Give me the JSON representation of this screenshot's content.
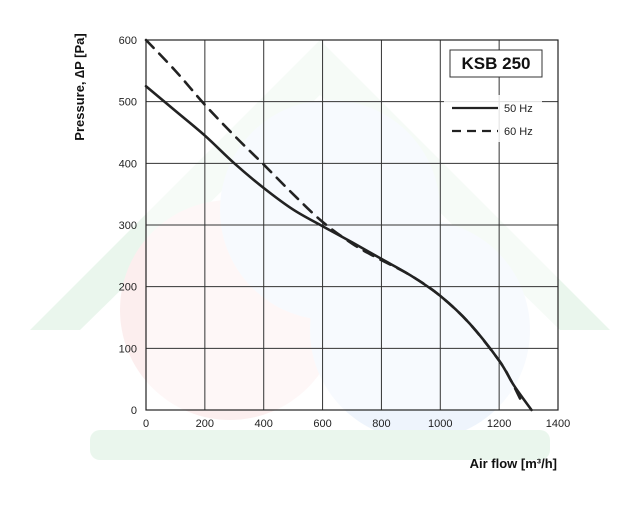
{
  "chart_data": {
    "type": "line",
    "title": "KSB 250",
    "xlabel": "Air flow [m³/h]",
    "ylabel": "Pressure, ∆P [Pa]",
    "xlim": [
      0,
      1400
    ],
    "ylim": [
      0,
      600
    ],
    "x_ticks": [
      "0",
      "200",
      "400",
      "600",
      "800",
      "1000",
      "1200",
      "1400"
    ],
    "y_ticks": [
      "0",
      "100",
      "200",
      "300",
      "400",
      "500",
      "600"
    ],
    "grid": true,
    "legend_position": "top-right",
    "series": [
      {
        "name": "50 Hz",
        "style": "solid",
        "color": "#222222",
        "points": [
          [
            0,
            525
          ],
          [
            100,
            485
          ],
          [
            200,
            445
          ],
          [
            300,
            400
          ],
          [
            400,
            360
          ],
          [
            500,
            325
          ],
          [
            600,
            298
          ],
          [
            700,
            272
          ],
          [
            800,
            245
          ],
          [
            900,
            218
          ],
          [
            1000,
            185
          ],
          [
            1100,
            140
          ],
          [
            1200,
            80
          ],
          [
            1250,
            40
          ],
          [
            1310,
            0
          ]
        ]
      },
      {
        "name": "60 Hz",
        "style": "dashed",
        "color": "#222222",
        "points": [
          [
            0,
            600
          ],
          [
            100,
            550
          ],
          [
            200,
            495
          ],
          [
            300,
            445
          ],
          [
            400,
            398
          ],
          [
            500,
            350
          ],
          [
            600,
            305
          ],
          [
            700,
            270
          ],
          [
            780,
            248
          ],
          [
            900,
            218
          ],
          [
            1000,
            185
          ],
          [
            1100,
            140
          ],
          [
            1200,
            80
          ],
          [
            1240,
            48
          ],
          [
            1280,
            10
          ]
        ]
      }
    ]
  }
}
